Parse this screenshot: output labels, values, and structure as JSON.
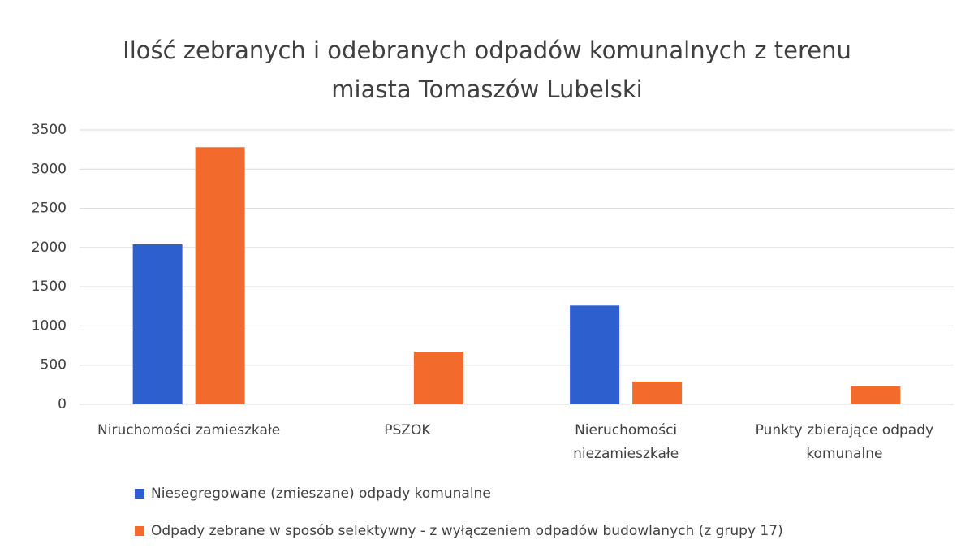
{
  "chart_data": {
    "type": "bar",
    "title": "Ilość zebranych i odebranych odpadów komunalnych z terenu miasta Tomaszów Lubelski",
    "categories": [
      "Niruchomości zamieszkałe",
      "PSZOK",
      "Nieruchomości niezamieszkałe",
      "Punkty zbierające odpady komunalne"
    ],
    "series": [
      {
        "name": "Niesegregowane (zmieszane) odpady komunalne",
        "color": "#2e5fcf",
        "values": [
          2040,
          null,
          1260,
          null
        ]
      },
      {
        "name": "Odpady zebrane w sposób selektywny - z wyłączeniem odpadów budowlanych (z grupy 17)",
        "color": "#f26a2c",
        "values": [
          3280,
          670,
          290,
          230
        ]
      }
    ],
    "ylim": [
      0,
      3500
    ],
    "yticks": [
      0,
      500,
      1000,
      1500,
      2000,
      2500,
      3000,
      3500
    ],
    "grid": true
  }
}
